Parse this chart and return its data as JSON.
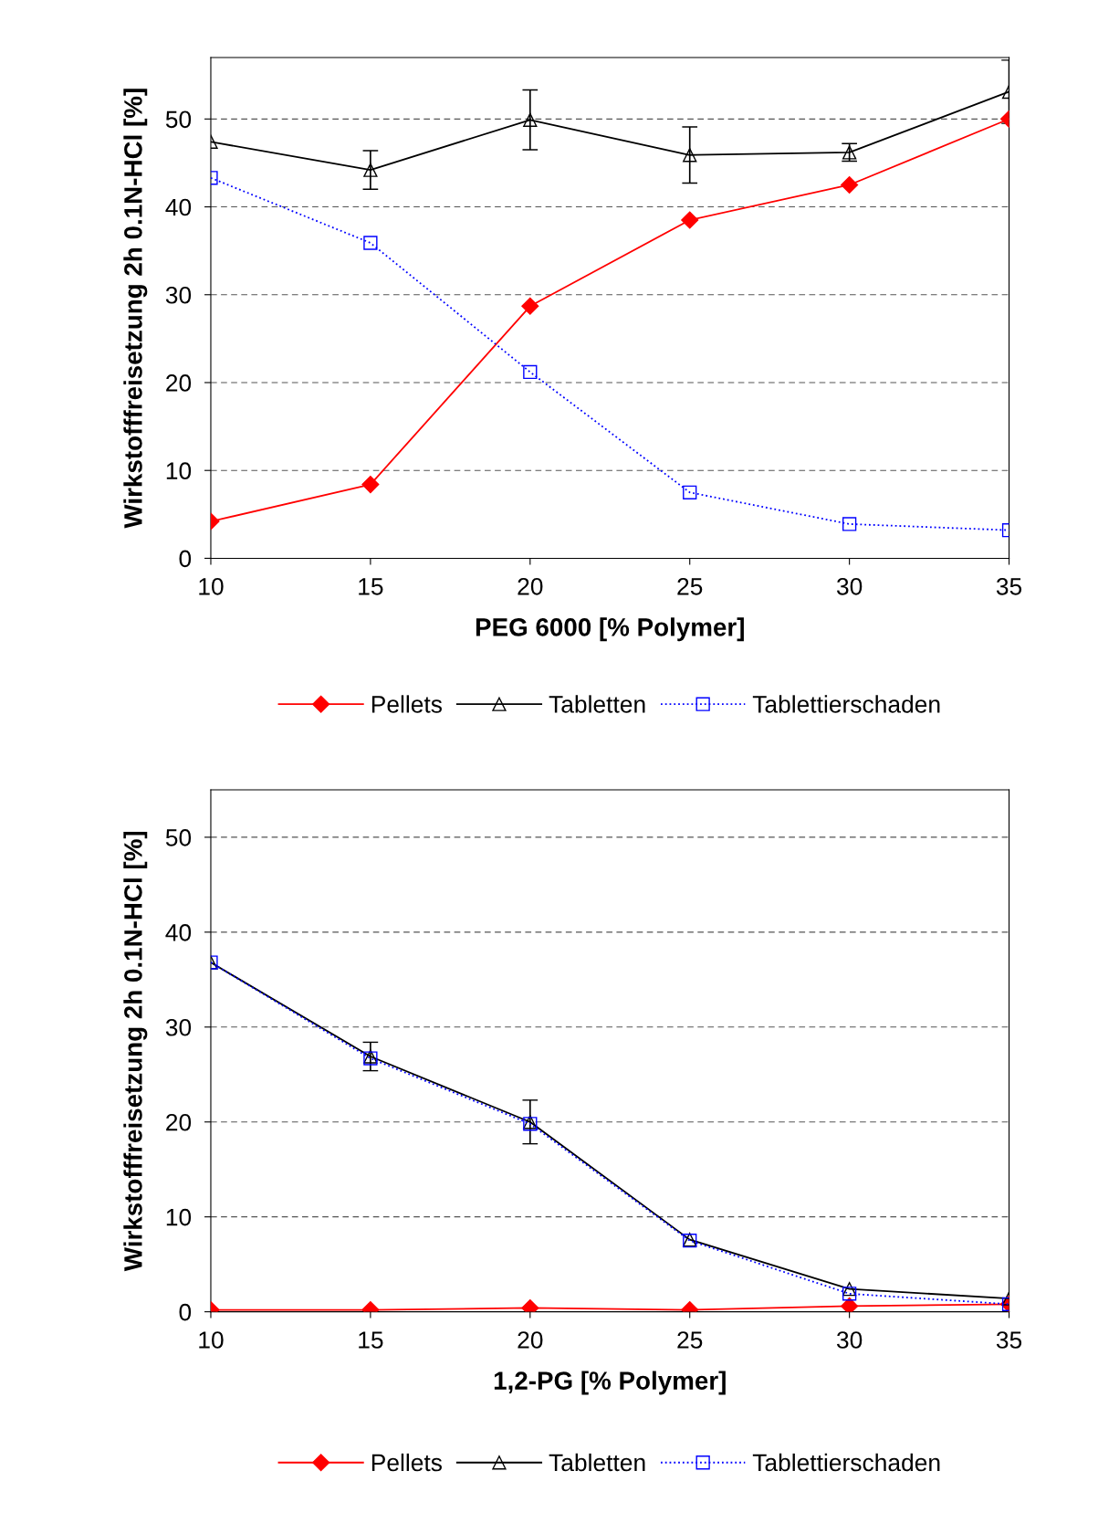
{
  "chart_data": [
    {
      "type": "line",
      "xlabel": "PEG 6000 [% Polymer]",
      "ylabel": "Wirkstofffreisetzung 2h 0.1N-HCl [%]",
      "x": [
        10,
        15,
        20,
        25,
        30,
        35
      ],
      "xlim": [
        10,
        35
      ],
      "xticks": [
        10,
        15,
        20,
        25,
        30,
        35
      ],
      "ylim": [
        0,
        57
      ],
      "yticks": [
        0,
        10,
        20,
        30,
        40,
        50
      ],
      "grid": "y",
      "legend": "bottom",
      "series": [
        {
          "name": "Pellets",
          "color": "#ff0000",
          "marker": "diamond",
          "line_style": "solid",
          "values": [
            4.2,
            8.4,
            28.7,
            38.5,
            42.5,
            50.0
          ]
        },
        {
          "name": "Tabletten",
          "color": "#000000",
          "marker": "triangle",
          "line_style": "solid",
          "values": [
            47.4,
            44.2,
            49.9,
            45.9,
            46.2,
            53.1
          ],
          "errors": [
            null,
            2.2,
            3.4,
            3.2,
            1.0,
            3.6
          ]
        },
        {
          "name": "Tablettierschaden",
          "color": "#0000ff",
          "marker": "square",
          "line_style": "dotted",
          "values": [
            43.3,
            35.9,
            21.2,
            7.5,
            3.9,
            3.2
          ]
        }
      ]
    },
    {
      "type": "line",
      "xlabel": "1,2-PG [% Polymer]",
      "ylabel": "Wirkstofffreisetzung 2h 0.1N-HCl [%]",
      "x": [
        10,
        15,
        20,
        25,
        30,
        35
      ],
      "xlim": [
        10,
        35
      ],
      "xticks": [
        10,
        15,
        20,
        25,
        30,
        35
      ],
      "ylim": [
        0,
        55
      ],
      "yticks": [
        0,
        10,
        20,
        30,
        40,
        50
      ],
      "grid": "y",
      "legend": "bottom",
      "series": [
        {
          "name": "Pellets",
          "color": "#ff0000",
          "marker": "diamond",
          "line_style": "solid",
          "values": [
            0.2,
            0.2,
            0.4,
            0.2,
            0.6,
            0.8
          ]
        },
        {
          "name": "Tabletten",
          "color": "#000000",
          "marker": "triangle",
          "line_style": "solid",
          "values": [
            36.8,
            26.9,
            20.0,
            7.6,
            2.4,
            1.4
          ],
          "errors": [
            null,
            1.5,
            2.3,
            null,
            null,
            null
          ]
        },
        {
          "name": "Tablettierschaden",
          "color": "#0000ff",
          "marker": "square",
          "line_style": "dotted",
          "values": [
            36.8,
            26.7,
            19.8,
            7.5,
            1.9,
            0.8
          ]
        }
      ]
    }
  ]
}
